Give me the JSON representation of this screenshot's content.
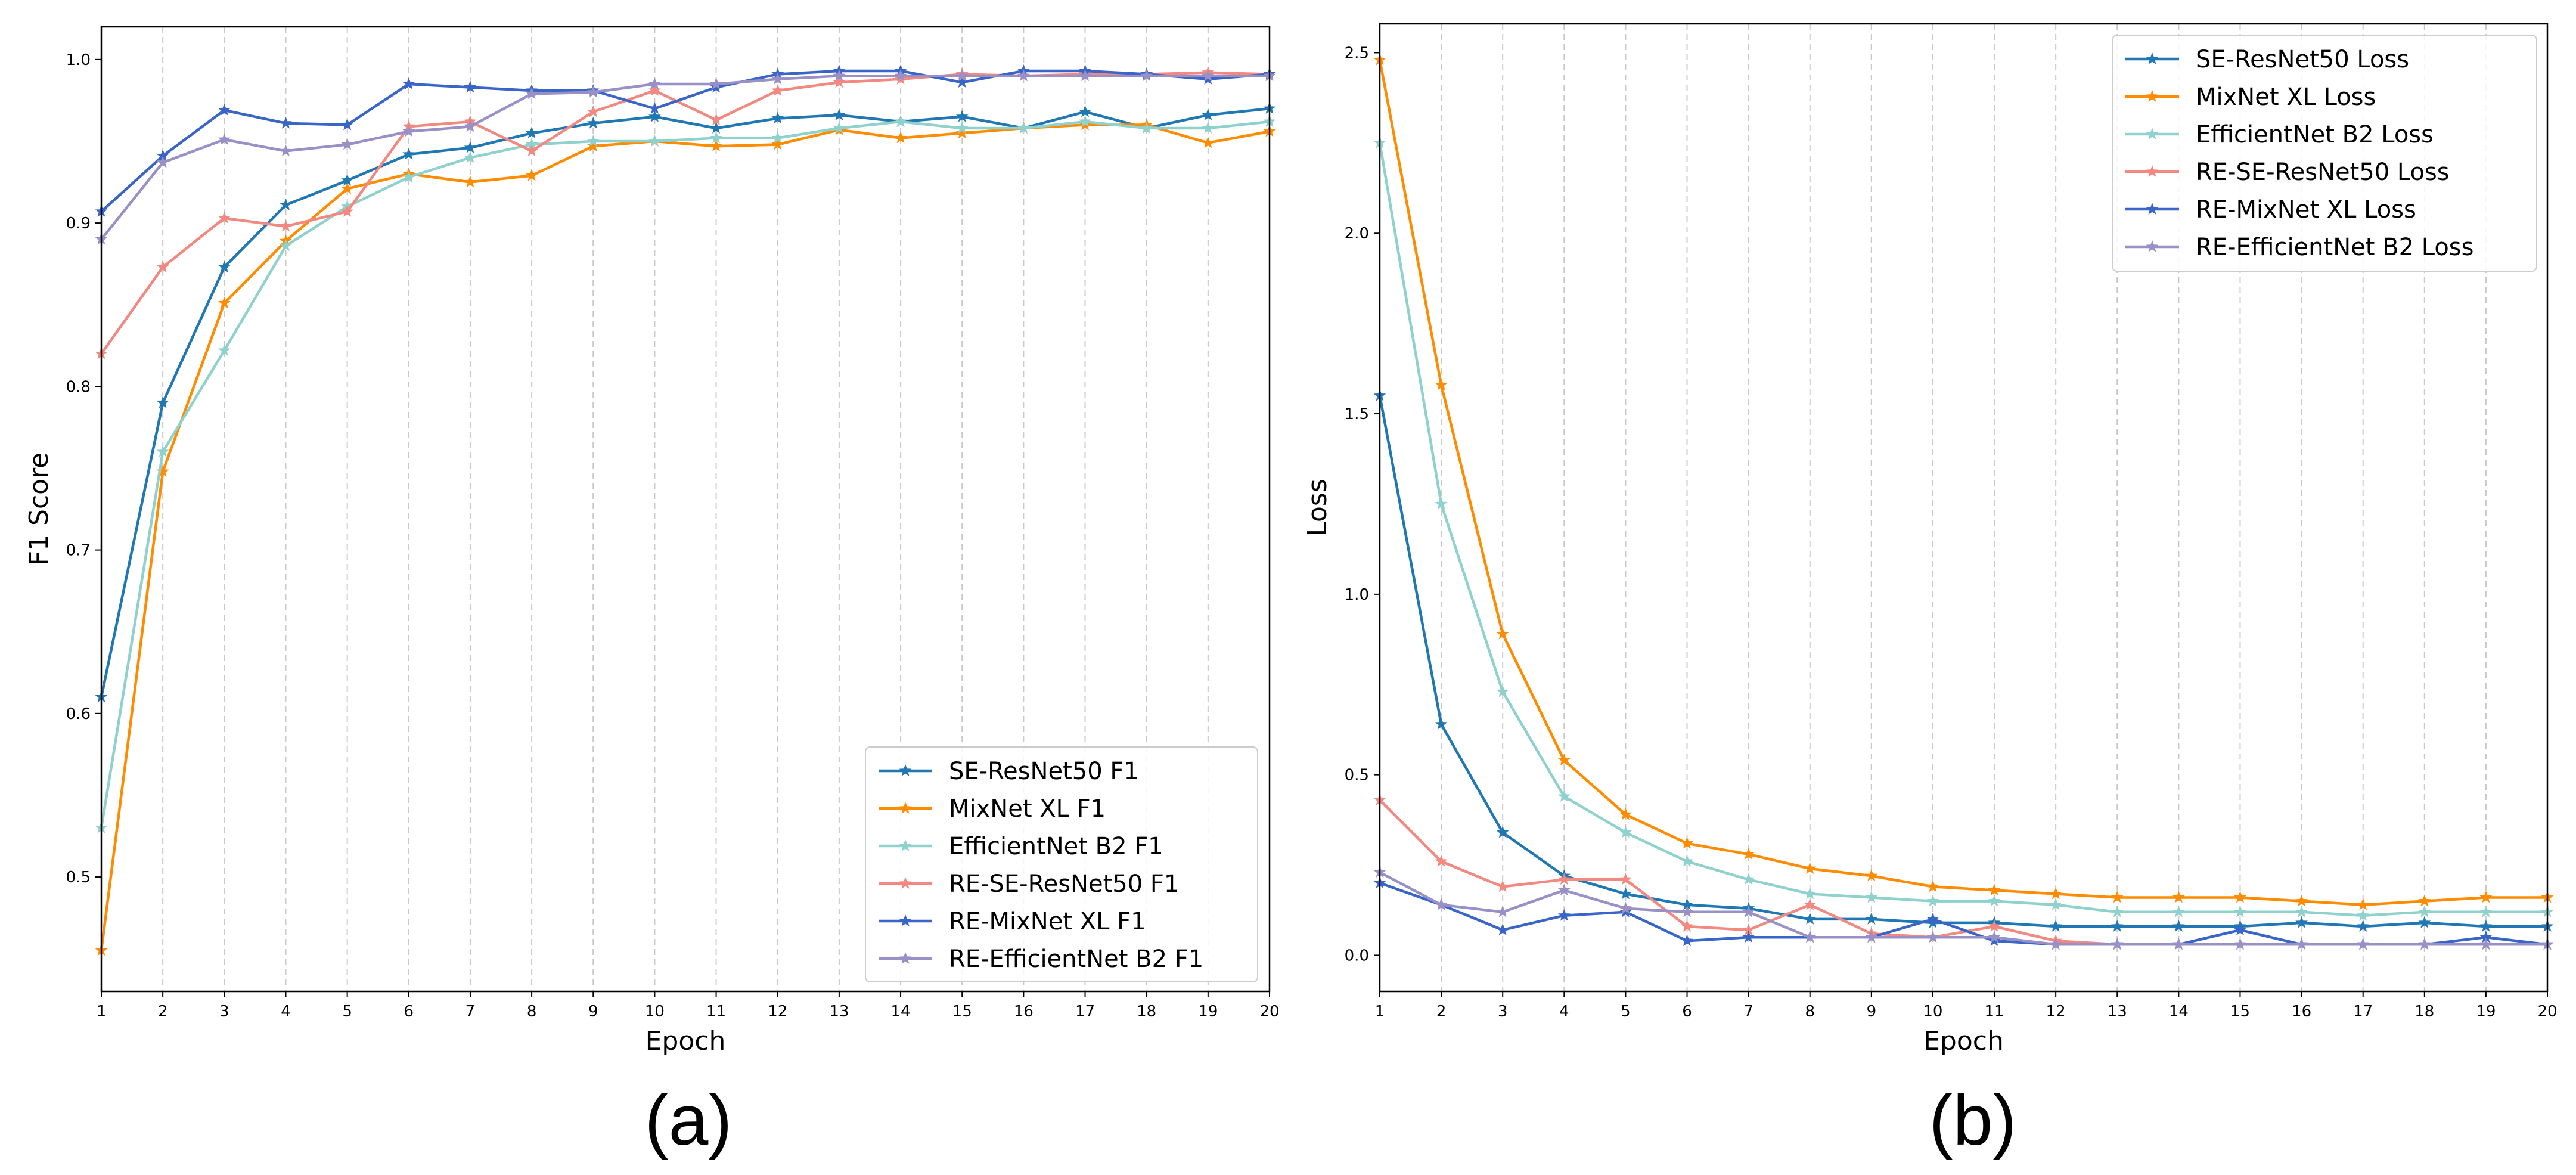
{
  "chart_data": [
    {
      "type": "line",
      "panel_label": "(a)",
      "xlabel": "Epoch",
      "ylabel": "F1 Score",
      "x": [
        1,
        2,
        3,
        4,
        5,
        6,
        7,
        8,
        9,
        10,
        11,
        12,
        13,
        14,
        15,
        16,
        17,
        18,
        19,
        20
      ],
      "xlim": [
        1,
        20
      ],
      "ylim": [
        0.43,
        1.02
      ],
      "xticks": [
        "1",
        "2",
        "3",
        "4",
        "5",
        "6",
        "7",
        "8",
        "9",
        "10",
        "11",
        "12",
        "13",
        "14",
        "15",
        "16",
        "17",
        "18",
        "19",
        "20"
      ],
      "yticks": [
        {
          "value": 0.5,
          "label": "0.5"
        },
        {
          "value": 0.6,
          "label": "0.6"
        },
        {
          "value": 0.7,
          "label": "0.7"
        },
        {
          "value": 0.8,
          "label": "0.8"
        },
        {
          "value": 0.9,
          "label": "0.9"
        },
        {
          "value": 1.0,
          "label": "1.0"
        }
      ],
      "grid": "vertical dashed",
      "legend_position": "lower-right",
      "series": [
        {
          "name": "SE-ResNet50 F1",
          "color": "#1f77b4",
          "values": [
            0.61,
            0.79,
            0.873,
            0.911,
            0.926,
            0.942,
            0.946,
            0.955,
            0.961,
            0.965,
            0.958,
            0.964,
            0.966,
            0.962,
            0.965,
            0.958,
            0.968,
            0.958,
            0.966,
            0.97
          ]
        },
        {
          "name": "MixNet XL F1",
          "color": "#ff8c00",
          "values": [
            0.455,
            0.748,
            0.851,
            0.889,
            0.921,
            0.93,
            0.925,
            0.929,
            0.947,
            0.95,
            0.947,
            0.948,
            0.957,
            0.952,
            0.955,
            0.958,
            0.96,
            0.96,
            0.949,
            0.956
          ]
        },
        {
          "name": "EfficientNet B2 F1",
          "color": "#8fd1cd",
          "values": [
            0.53,
            0.76,
            0.822,
            0.886,
            0.91,
            0.928,
            0.94,
            0.948,
            0.95,
            0.95,
            0.952,
            0.952,
            0.958,
            0.962,
            0.958,
            0.958,
            0.962,
            0.958,
            0.958,
            0.962
          ]
        },
        {
          "name": "RE-SE-ResNet50 F1",
          "color": "#f28880",
          "values": [
            0.82,
            0.873,
            0.903,
            0.898,
            0.907,
            0.959,
            0.962,
            0.944,
            0.968,
            0.981,
            0.963,
            0.981,
            0.986,
            0.988,
            0.991,
            0.99,
            0.991,
            0.991,
            0.992,
            0.991
          ]
        },
        {
          "name": "RE-MixNet XL F1",
          "color": "#3a65c8",
          "values": [
            0.907,
            0.941,
            0.969,
            0.961,
            0.96,
            0.985,
            0.983,
            0.981,
            0.981,
            0.97,
            0.983,
            0.991,
            0.993,
            0.993,
            0.986,
            0.993,
            0.993,
            0.991,
            0.988,
            0.991
          ]
        },
        {
          "name": "RE-EfficientNet B2 F1",
          "color": "#9890c6",
          "values": [
            0.89,
            0.937,
            0.951,
            0.944,
            0.948,
            0.956,
            0.959,
            0.979,
            0.98,
            0.985,
            0.985,
            0.988,
            0.99,
            0.99,
            0.99,
            0.99,
            0.99,
            0.99,
            0.99,
            0.99
          ]
        }
      ]
    },
    {
      "type": "line",
      "panel_label": "(b)",
      "xlabel": "Epoch",
      "ylabel": "Loss",
      "x": [
        1,
        2,
        3,
        4,
        5,
        6,
        7,
        8,
        9,
        10,
        11,
        12,
        13,
        14,
        15,
        16,
        17,
        18,
        19,
        20
      ],
      "xlim": [
        1,
        20
      ],
      "ylim": [
        -0.1,
        2.58
      ],
      "xticks": [
        "1",
        "2",
        "3",
        "4",
        "5",
        "6",
        "7",
        "8",
        "9",
        "10",
        "11",
        "12",
        "13",
        "14",
        "15",
        "16",
        "17",
        "18",
        "19",
        "20"
      ],
      "yticks": [
        {
          "value": 0.0,
          "label": "0.0"
        },
        {
          "value": 0.5,
          "label": "0.5"
        },
        {
          "value": 1.0,
          "label": "1.0"
        },
        {
          "value": 1.5,
          "label": "1.5"
        },
        {
          "value": 2.0,
          "label": "2.0"
        },
        {
          "value": 2.5,
          "label": "2.5"
        }
      ],
      "grid": "vertical dashed",
      "legend_position": "upper-right",
      "series": [
        {
          "name": "SE-ResNet50 Loss",
          "color": "#1f77b4",
          "values": [
            1.55,
            0.64,
            0.34,
            0.22,
            0.17,
            0.14,
            0.13,
            0.1,
            0.1,
            0.09,
            0.09,
            0.08,
            0.08,
            0.08,
            0.08,
            0.09,
            0.08,
            0.09,
            0.08,
            0.08
          ]
        },
        {
          "name": "MixNet XL Loss",
          "color": "#ff8c00",
          "values": [
            2.48,
            1.58,
            0.89,
            0.54,
            0.39,
            0.31,
            0.28,
            0.24,
            0.22,
            0.19,
            0.18,
            0.17,
            0.16,
            0.16,
            0.16,
            0.15,
            0.14,
            0.15,
            0.16,
            0.16
          ]
        },
        {
          "name": "EfficientNet B2 Loss",
          "color": "#8fd1cd",
          "values": [
            2.25,
            1.25,
            0.73,
            0.44,
            0.34,
            0.26,
            0.21,
            0.17,
            0.16,
            0.15,
            0.15,
            0.14,
            0.12,
            0.12,
            0.12,
            0.12,
            0.11,
            0.12,
            0.12,
            0.12
          ]
        },
        {
          "name": "RE-SE-ResNet50 Loss",
          "color": "#f28880",
          "values": [
            0.43,
            0.26,
            0.19,
            0.21,
            0.21,
            0.08,
            0.07,
            0.14,
            0.06,
            0.05,
            0.08,
            0.04,
            0.03,
            0.03,
            0.03,
            0.03,
            0.03,
            0.03,
            0.03,
            0.03
          ]
        },
        {
          "name": "RE-MixNet XL Loss",
          "color": "#3a65c8",
          "values": [
            0.2,
            0.14,
            0.07,
            0.11,
            0.12,
            0.04,
            0.05,
            0.05,
            0.05,
            0.1,
            0.04,
            0.03,
            0.03,
            0.03,
            0.07,
            0.03,
            0.03,
            0.03,
            0.05,
            0.03
          ]
        },
        {
          "name": "RE-EfficientNet B2 Loss",
          "color": "#9890c6",
          "values": [
            0.23,
            0.14,
            0.12,
            0.18,
            0.13,
            0.12,
            0.12,
            0.05,
            0.05,
            0.05,
            0.05,
            0.03,
            0.03,
            0.03,
            0.03,
            0.03,
            0.03,
            0.03,
            0.03,
            0.03
          ]
        }
      ]
    }
  ]
}
